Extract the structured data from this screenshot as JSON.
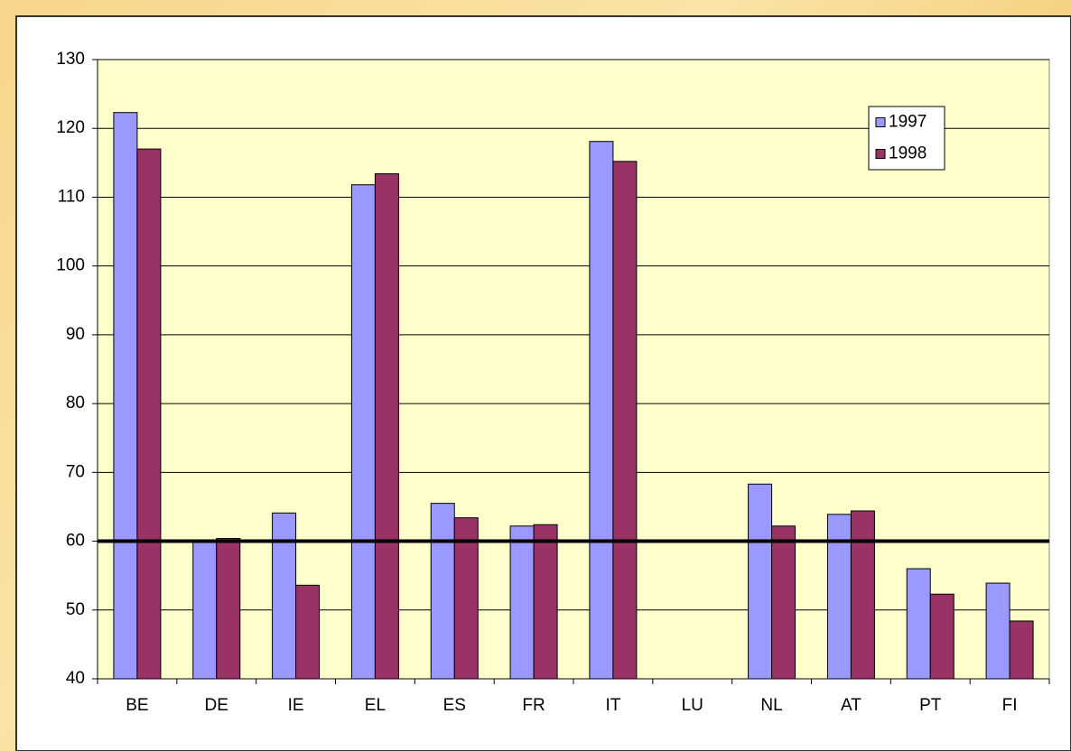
{
  "chart_data": {
    "type": "bar",
    "categories": [
      "BE",
      "DE",
      "IE",
      "EL",
      "ES",
      "FR",
      "IT",
      "LU",
      "NL",
      "AT",
      "PT",
      "FI"
    ],
    "series": [
      {
        "name": "1997",
        "color": "#9999ff",
        "values": [
          122.3,
          59.9,
          64.1,
          111.8,
          65.5,
          62.2,
          118.1,
          null,
          68.3,
          63.9,
          56.0,
          53.9
        ]
      },
      {
        "name": "1998",
        "color": "#993366",
        "values": [
          117.0,
          60.4,
          53.6,
          113.4,
          63.4,
          62.4,
          115.2,
          null,
          62.2,
          64.4,
          52.3,
          48.4
        ]
      }
    ],
    "ylim": [
      40,
      130
    ],
    "yticks": [
      40,
      50,
      60,
      70,
      80,
      90,
      100,
      110,
      120,
      130
    ],
    "grid": true,
    "reference_line": 60,
    "legend": "top-right"
  }
}
